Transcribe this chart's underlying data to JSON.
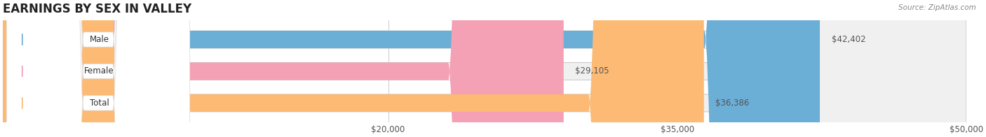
{
  "title": "EARNINGS BY SEX IN VALLEY",
  "source": "Source: ZipAtlas.com",
  "categories": [
    "Male",
    "Female",
    "Total"
  ],
  "values": [
    42402,
    29105,
    36386
  ],
  "bar_colors": [
    "#6baed6",
    "#f4a0b5",
    "#fdba74"
  ],
  "label_colors": [
    "#6baed6",
    "#f4a0b5",
    "#fdba74"
  ],
  "bg_bar_color": "#f0f0f0",
  "xmin": 0,
  "xmax": 50000,
  "xticks": [
    20000,
    35000,
    50000
  ],
  "xtick_labels": [
    "$20,000",
    "$35,000",
    "$50,000"
  ],
  "value_labels": [
    "$42,402",
    "$29,105",
    "$36,386"
  ],
  "figsize": [
    14.06,
    1.96
  ],
  "dpi": 100
}
